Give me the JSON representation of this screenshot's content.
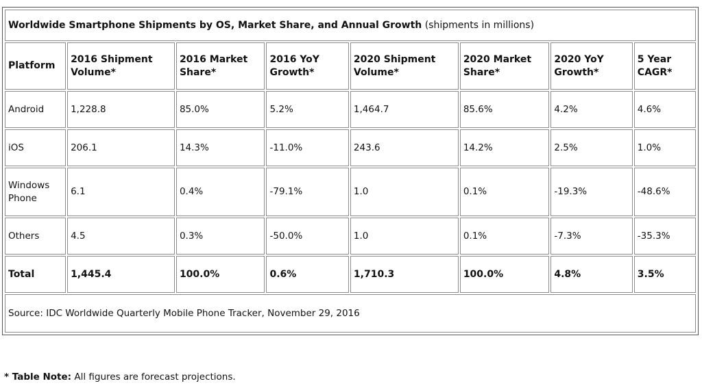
{
  "chart_data": {
    "type": "table",
    "title": "Worldwide Smartphone Shipments by OS, Market Share, and Annual Growth",
    "subtitle": "(shipments in millions)",
    "columns": [
      "Platform",
      "2016 Shipment Volume*",
      "2016 Market Share*",
      "2016 YoY Growth*",
      "2020 Shipment Volume*",
      "2020 Market Share*",
      "2020 YoY Growth*",
      "5 Year CAGR*"
    ],
    "rows": [
      [
        "Android",
        "1,228.8",
        "85.0%",
        "5.2%",
        "1,464.7",
        "85.6%",
        "4.2%",
        "4.6%"
      ],
      [
        "iOS",
        "206.1",
        "14.3%",
        "-11.0%",
        "243.6",
        "14.2%",
        "2.5%",
        "1.0%"
      ],
      [
        "Windows Phone",
        "6.1",
        "0.4%",
        "-79.1%",
        "1.0",
        "0.1%",
        "-19.3%",
        "-48.6%"
      ],
      [
        "Others",
        "4.5",
        "0.3%",
        "-50.0%",
        "1.0",
        "0.1%",
        "-7.3%",
        "-35.3%"
      ]
    ],
    "total": [
      "Total",
      "1,445.4",
      "100.0%",
      "0.6%",
      "1,710.3",
      "100.0%",
      "4.8%",
      "3.5%"
    ],
    "source": "Source: IDC Worldwide Quarterly Mobile Phone Tracker, November 29, 2016"
  },
  "note": {
    "label": "* Table Note:",
    "text": "All figures are forecast projections."
  }
}
